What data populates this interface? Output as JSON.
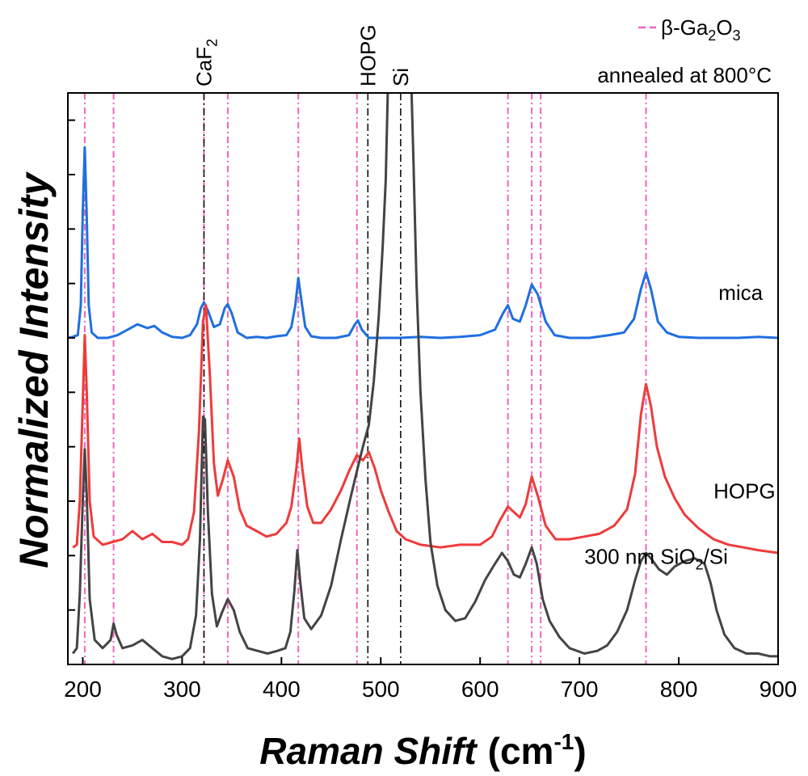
{
  "chart_data": {
    "type": "line",
    "xlabel": "Raman Shift",
    "xlabel_unit_base": "(cm",
    "xlabel_unit_sup": "-1",
    "xlabel_unit_close": ")",
    "ylabel": "Normalized Intensity",
    "xlim": [
      185,
      900
    ],
    "ylim": [
      0,
      10.5
    ],
    "x_ticks": [
      200,
      300,
      400,
      500,
      600,
      700,
      800,
      900
    ],
    "grid": false,
    "corner_annotation": "annealed at 800°C",
    "legend": {
      "position": "top-right",
      "entry_prefix": "β-Ga",
      "entry_sub1": "2",
      "entry_mid": "O",
      "entry_sub2": "3",
      "color": "#ee66bb",
      "style": "dashed"
    },
    "ga2o3_lines": [
      202,
      231,
      322,
      346,
      417,
      476,
      628,
      652,
      661,
      767
    ],
    "reference_lines": [
      {
        "name": "CaF",
        "sub": "2",
        "x": 322
      },
      {
        "name": "HOPG",
        "sub": "",
        "x": 487
      },
      {
        "name": "Si",
        "sub": "",
        "x": 520
      }
    ],
    "series": [
      {
        "name": "mica",
        "color": "#1f6fe0",
        "baseline": 6.0,
        "label_x": 840,
        "label_y": 6.7,
        "points": [
          [
            185,
            6.0
          ],
          [
            190,
            6.02
          ],
          [
            195,
            6.05
          ],
          [
            198,
            6.6
          ],
          [
            200,
            8.3
          ],
          [
            202,
            9.5
          ],
          [
            204,
            8.2
          ],
          [
            206,
            6.6
          ],
          [
            209,
            6.1
          ],
          [
            215,
            6.0
          ],
          [
            225,
            6.0
          ],
          [
            235,
            6.05
          ],
          [
            245,
            6.15
          ],
          [
            255,
            6.25
          ],
          [
            265,
            6.18
          ],
          [
            272,
            6.22
          ],
          [
            280,
            6.1
          ],
          [
            290,
            6.02
          ],
          [
            300,
            6.0
          ],
          [
            308,
            6.05
          ],
          [
            315,
            6.25
          ],
          [
            319,
            6.55
          ],
          [
            322,
            6.65
          ],
          [
            326,
            6.5
          ],
          [
            332,
            6.2
          ],
          [
            338,
            6.25
          ],
          [
            343,
            6.55
          ],
          [
            346,
            6.62
          ],
          [
            350,
            6.45
          ],
          [
            356,
            6.1
          ],
          [
            365,
            6.0
          ],
          [
            375,
            6.02
          ],
          [
            385,
            6.0
          ],
          [
            395,
            6.03
          ],
          [
            405,
            6.05
          ],
          [
            410,
            6.2
          ],
          [
            414,
            6.6
          ],
          [
            417,
            7.1
          ],
          [
            420,
            6.7
          ],
          [
            424,
            6.2
          ],
          [
            430,
            6.03
          ],
          [
            440,
            6.0
          ],
          [
            455,
            6.0
          ],
          [
            468,
            6.05
          ],
          [
            474,
            6.25
          ],
          [
            477,
            6.32
          ],
          [
            481,
            6.15
          ],
          [
            488,
            6.0
          ],
          [
            500,
            6.0
          ],
          [
            520,
            6.0
          ],
          [
            540,
            6.02
          ],
          [
            560,
            6.0
          ],
          [
            580,
            6.02
          ],
          [
            600,
            6.05
          ],
          [
            615,
            6.15
          ],
          [
            623,
            6.45
          ],
          [
            628,
            6.6
          ],
          [
            633,
            6.35
          ],
          [
            640,
            6.3
          ],
          [
            646,
            6.6
          ],
          [
            652,
            6.98
          ],
          [
            658,
            6.8
          ],
          [
            666,
            6.3
          ],
          [
            675,
            6.05
          ],
          [
            690,
            6.0
          ],
          [
            710,
            6.0
          ],
          [
            730,
            6.05
          ],
          [
            745,
            6.1
          ],
          [
            755,
            6.35
          ],
          [
            762,
            6.9
          ],
          [
            767,
            7.2
          ],
          [
            772,
            6.9
          ],
          [
            779,
            6.3
          ],
          [
            788,
            6.1
          ],
          [
            800,
            6.02
          ],
          [
            820,
            6.0
          ],
          [
            840,
            6.0
          ],
          [
            860,
            6.0
          ],
          [
            880,
            6.02
          ],
          [
            900,
            6.0
          ]
        ]
      },
      {
        "name": "HOPG",
        "color": "#ee3b3b",
        "baseline": 2.1,
        "label_x": 835,
        "label_y": 3.05,
        "points": [
          [
            190,
            2.15
          ],
          [
            194,
            2.2
          ],
          [
            197,
            3.0
          ],
          [
            200,
            4.8
          ],
          [
            202,
            6.05
          ],
          [
            204,
            5.0
          ],
          [
            207,
            3.0
          ],
          [
            211,
            2.35
          ],
          [
            220,
            2.2
          ],
          [
            230,
            2.25
          ],
          [
            240,
            2.3
          ],
          [
            250,
            2.45
          ],
          [
            260,
            2.3
          ],
          [
            270,
            2.4
          ],
          [
            280,
            2.25
          ],
          [
            290,
            2.25
          ],
          [
            300,
            2.2
          ],
          [
            306,
            2.3
          ],
          [
            312,
            2.8
          ],
          [
            317,
            4.3
          ],
          [
            321,
            6.3
          ],
          [
            324,
            6.6
          ],
          [
            328,
            5.3
          ],
          [
            332,
            3.7
          ],
          [
            336,
            3.1
          ],
          [
            341,
            3.4
          ],
          [
            346,
            3.75
          ],
          [
            352,
            3.45
          ],
          [
            358,
            2.85
          ],
          [
            365,
            2.55
          ],
          [
            375,
            2.45
          ],
          [
            385,
            2.35
          ],
          [
            395,
            2.4
          ],
          [
            405,
            2.6
          ],
          [
            410,
            2.9
          ],
          [
            415,
            3.6
          ],
          [
            418,
            4.15
          ],
          [
            421,
            3.6
          ],
          [
            426,
            2.9
          ],
          [
            432,
            2.6
          ],
          [
            440,
            2.6
          ],
          [
            450,
            2.85
          ],
          [
            460,
            3.2
          ],
          [
            468,
            3.55
          ],
          [
            476,
            3.85
          ],
          [
            482,
            3.75
          ],
          [
            488,
            3.9
          ],
          [
            494,
            3.6
          ],
          [
            500,
            3.2
          ],
          [
            508,
            2.8
          ],
          [
            516,
            2.45
          ],
          [
            525,
            2.3
          ],
          [
            540,
            2.2
          ],
          [
            560,
            2.15
          ],
          [
            580,
            2.2
          ],
          [
            600,
            2.2
          ],
          [
            612,
            2.35
          ],
          [
            620,
            2.65
          ],
          [
            628,
            2.9
          ],
          [
            634,
            2.8
          ],
          [
            640,
            2.7
          ],
          [
            646,
            2.95
          ],
          [
            652,
            3.45
          ],
          [
            658,
            3.1
          ],
          [
            666,
            2.55
          ],
          [
            676,
            2.3
          ],
          [
            690,
            2.3
          ],
          [
            705,
            2.35
          ],
          [
            720,
            2.4
          ],
          [
            735,
            2.55
          ],
          [
            748,
            2.85
          ],
          [
            756,
            3.5
          ],
          [
            762,
            4.6
          ],
          [
            767,
            5.15
          ],
          [
            772,
            4.75
          ],
          [
            778,
            4.0
          ],
          [
            786,
            3.45
          ],
          [
            796,
            3.05
          ],
          [
            806,
            2.75
          ],
          [
            820,
            2.5
          ],
          [
            835,
            2.3
          ],
          [
            850,
            2.2
          ],
          [
            865,
            2.15
          ],
          [
            880,
            2.1
          ],
          [
            900,
            2.05
          ]
        ]
      },
      {
        "name": "300 nm SiO",
        "name_sub": "2",
        "name_suffix": "/Si",
        "color": "#444444",
        "baseline": 0.0,
        "label_x": 705,
        "label_y": 1.85,
        "points": [
          [
            190,
            0.2
          ],
          [
            194,
            0.3
          ],
          [
            197,
            1.3
          ],
          [
            200,
            3.0
          ],
          [
            202,
            3.95
          ],
          [
            204,
            3.1
          ],
          [
            207,
            1.2
          ],
          [
            212,
            0.45
          ],
          [
            220,
            0.3
          ],
          [
            228,
            0.45
          ],
          [
            231,
            0.75
          ],
          [
            234,
            0.55
          ],
          [
            240,
            0.3
          ],
          [
            250,
            0.35
          ],
          [
            260,
            0.45
          ],
          [
            270,
            0.3
          ],
          [
            280,
            0.15
          ],
          [
            290,
            0.1
          ],
          [
            300,
            0.15
          ],
          [
            308,
            0.3
          ],
          [
            314,
            0.9
          ],
          [
            318,
            2.3
          ],
          [
            321,
            4.55
          ],
          [
            323,
            4.5
          ],
          [
            326,
            2.8
          ],
          [
            330,
            1.3
          ],
          [
            335,
            0.7
          ],
          [
            340,
            0.95
          ],
          [
            346,
            1.2
          ],
          [
            352,
            1.0
          ],
          [
            358,
            0.6
          ],
          [
            366,
            0.3
          ],
          [
            376,
            0.25
          ],
          [
            386,
            0.2
          ],
          [
            396,
            0.25
          ],
          [
            404,
            0.3
          ],
          [
            409,
            0.6
          ],
          [
            413,
            1.35
          ],
          [
            416,
            2.1
          ],
          [
            419,
            1.5
          ],
          [
            423,
            0.85
          ],
          [
            430,
            0.65
          ],
          [
            440,
            0.9
          ],
          [
            450,
            1.45
          ],
          [
            460,
            2.3
          ],
          [
            470,
            3.1
          ],
          [
            476,
            3.55
          ],
          [
            482,
            4.0
          ],
          [
            488,
            4.4
          ],
          [
            493,
            5.2
          ],
          [
            498,
            6.4
          ],
          [
            502,
            7.7
          ],
          [
            505,
            8.9
          ],
          [
            507,
            10.5
          ]
        ]
      },
      {
        "name": "300 nm SiO",
        "hidden_label": true,
        "color": "#444444",
        "baseline": 0.0,
        "points": [
          [
            531,
            10.5
          ],
          [
            533,
            9.2
          ],
          [
            536,
            7.0
          ],
          [
            540,
            5.0
          ],
          [
            545,
            3.4
          ],
          [
            550,
            2.25
          ],
          [
            557,
            1.45
          ],
          [
            565,
            1.0
          ],
          [
            575,
            0.8
          ],
          [
            585,
            0.85
          ],
          [
            595,
            1.15
          ],
          [
            605,
            1.55
          ],
          [
            615,
            1.85
          ],
          [
            622,
            2.05
          ],
          [
            628,
            1.9
          ],
          [
            634,
            1.65
          ],
          [
            640,
            1.6
          ],
          [
            646,
            1.85
          ],
          [
            652,
            2.15
          ],
          [
            657,
            1.85
          ],
          [
            663,
            1.2
          ],
          [
            670,
            0.8
          ],
          [
            680,
            0.5
          ],
          [
            690,
            0.3
          ],
          [
            705,
            0.2
          ],
          [
            718,
            0.25
          ],
          [
            728,
            0.35
          ],
          [
            738,
            0.6
          ],
          [
            748,
            1.0
          ],
          [
            756,
            1.55
          ],
          [
            762,
            1.9
          ],
          [
            767,
            2.05
          ],
          [
            772,
            1.95
          ],
          [
            780,
            1.75
          ],
          [
            788,
            1.65
          ],
          [
            796,
            1.8
          ],
          [
            806,
            1.9
          ],
          [
            816,
            1.95
          ],
          [
            826,
            1.85
          ],
          [
            832,
            1.5
          ],
          [
            838,
            1.0
          ],
          [
            846,
            0.55
          ],
          [
            856,
            0.3
          ],
          [
            868,
            0.2
          ],
          [
            880,
            0.2
          ],
          [
            892,
            0.15
          ],
          [
            900,
            0.15
          ]
        ]
      }
    ]
  }
}
